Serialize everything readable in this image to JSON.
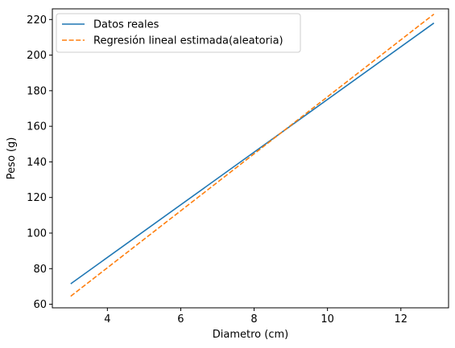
{
  "chart_data": {
    "type": "line",
    "title": "",
    "xlabel": "Diametro (cm)",
    "ylabel": "Peso (g)",
    "xlim": [
      2.5,
      13.3
    ],
    "ylim": [
      58,
      226
    ],
    "xticks": [
      4,
      6,
      8,
      10,
      12
    ],
    "yticks": [
      60,
      80,
      100,
      120,
      140,
      160,
      180,
      200,
      220
    ],
    "grid": false,
    "legend_position": "top-left",
    "series": [
      {
        "name": "Datos reales",
        "color": "#1f77b4",
        "style": "solid",
        "x": [
          3.0,
          12.9
        ],
        "y": [
          71.5,
          218.0
        ]
      },
      {
        "name": "Regresión lineal estimada(aleatoria)",
        "color": "#ff7f0e",
        "style": "dashed",
        "x": [
          3.0,
          12.9
        ],
        "y": [
          64.5,
          223.0
        ]
      }
    ]
  }
}
